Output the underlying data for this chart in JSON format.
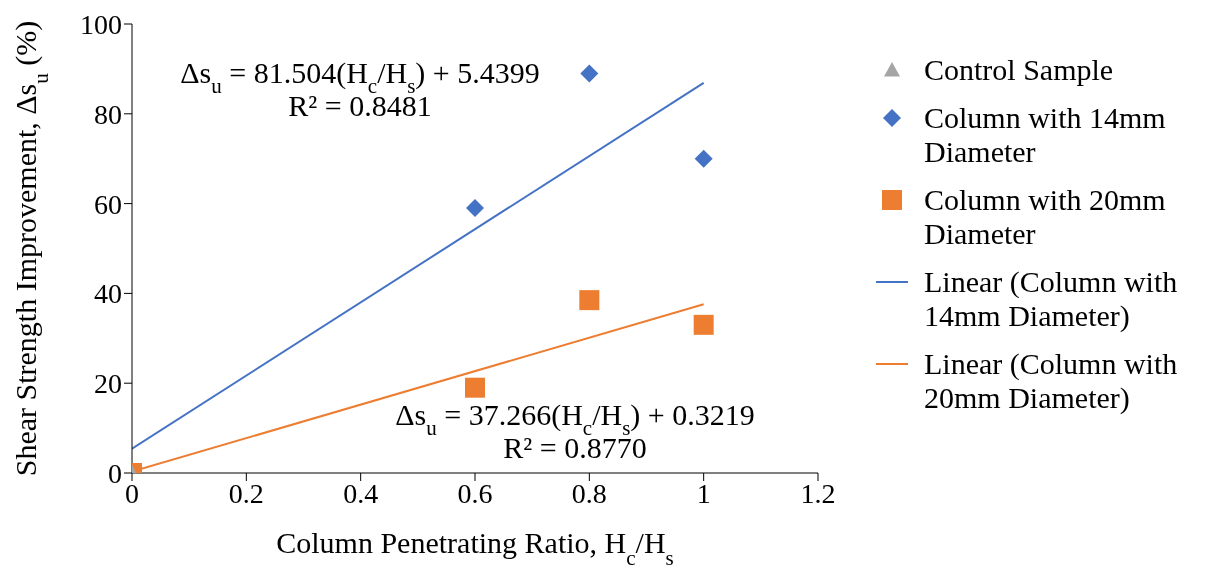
{
  "chart_data": {
    "type": "scatter",
    "xlabel": "Column Penetrating Ratio, H$_{c}$/H$_{s}$",
    "ylabel": "Shear Strength Improvement, Δs$_{u}$ (%)",
    "xlim": [
      0,
      1.2
    ],
    "xticks": [
      0,
      0.2,
      0.4,
      0.6,
      0.8,
      1,
      1.2
    ],
    "ylim": [
      0,
      100
    ],
    "yticks": [
      0,
      20,
      40,
      60,
      80,
      100
    ],
    "grid": false,
    "legend": "right",
    "series": [
      {
        "name": "Control Sample",
        "marker": "triangle",
        "color": "#a5a5a5",
        "x": [
          0
        ],
        "values": [
          0
        ]
      },
      {
        "name": "Column with 14mm Diameter",
        "marker": "diamond",
        "color": "#4472c4",
        "x": [
          0.6,
          0.8,
          1
        ],
        "values": [
          59,
          89,
          70
        ]
      },
      {
        "name": "Column with 20mm Diameter",
        "marker": "square",
        "color": "#ed7d31",
        "x": [
          0,
          0.6,
          0.8,
          1
        ],
        "values": [
          0,
          19,
          38.5,
          33
        ]
      },
      {
        "name": "Linear (Column with 14mm Diameter)",
        "type": "line",
        "marker": "none",
        "color": "#4472c4",
        "x": [
          0,
          1
        ],
        "values": [
          5.4,
          86.9
        ]
      },
      {
        "name": "Linear (Column with 20mm Diameter)",
        "type": "line",
        "marker": "none",
        "color": "#ed7d31",
        "x": [
          0,
          1
        ],
        "values": [
          0.3,
          37.6
        ]
      }
    ],
    "annotations": [
      "Δs$_{u}$ = 81.504(H$_{c}$/H$_{s}$) + 5.4399",
      "R² = 0.8481",
      "Δs$_{u}$ = 37.266(H$_{c}$/H$_{s}$) + 0.3219",
      "R² = 0.8770"
    ]
  }
}
